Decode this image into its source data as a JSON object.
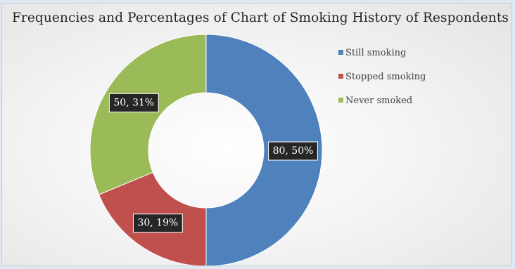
{
  "chart_data": {
    "type": "pie",
    "variant": "doughnut",
    "title": "Frequencies and Percentages of Chart of Smoking History of Respondents",
    "categories": [
      "Still smoking",
      "Stopped smoking",
      "Never smoked"
    ],
    "values": [
      80,
      30,
      50
    ],
    "percentages": [
      50,
      19,
      31
    ],
    "data_labels": [
      "80, 50%",
      "30, 19%",
      "50, 31%"
    ],
    "colors": [
      "#4f81bd",
      "#c0504d",
      "#9bbb59"
    ],
    "legend_position": "top-right"
  }
}
